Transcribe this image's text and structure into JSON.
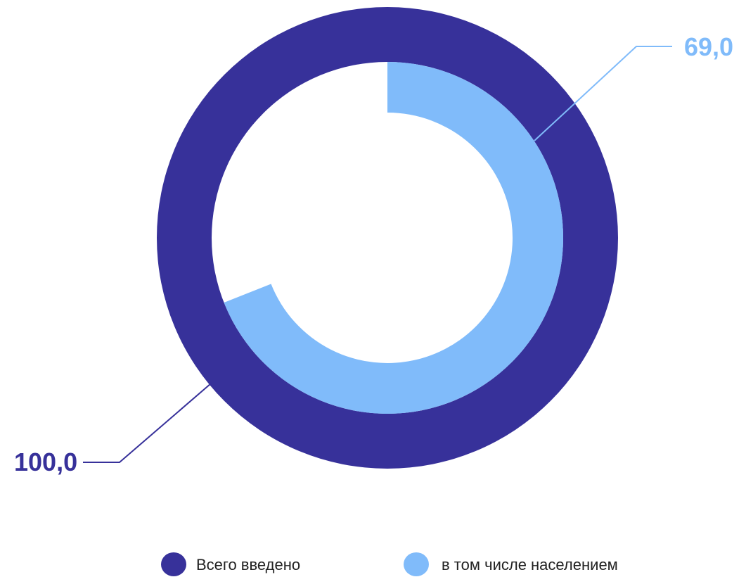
{
  "chart_data": {
    "type": "pie",
    "subtype": "concentric-donut",
    "series": [
      {
        "name": "Всего введено",
        "value": 100.0,
        "value_label": "100,0",
        "color": "#37319A",
        "ring": "outer"
      },
      {
        "name": "в том числе населением",
        "value": 69.0,
        "value_label": "69,0",
        "color": "#80BBFA",
        "ring": "inner"
      }
    ],
    "max": 100.0,
    "legend": {
      "position": "bottom"
    }
  }
}
